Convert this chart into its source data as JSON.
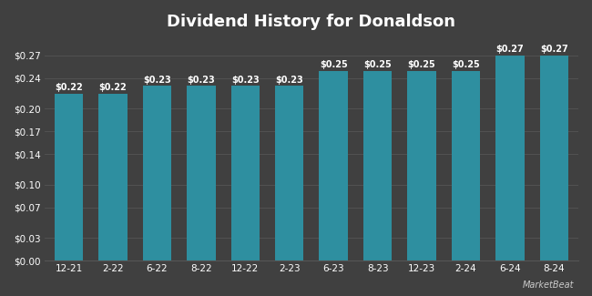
{
  "title": "Dividend History for Donaldson",
  "categories": [
    "12-21",
    "2-22",
    "6-22",
    "8-22",
    "12-22",
    "2-23",
    "6-23",
    "8-23",
    "12-23",
    "2-24",
    "6-24",
    "8-24"
  ],
  "values": [
    0.22,
    0.22,
    0.23,
    0.23,
    0.23,
    0.23,
    0.25,
    0.25,
    0.25,
    0.25,
    0.27,
    0.27
  ],
  "bar_color": "#2e8fa0",
  "background_color": "#404040",
  "plot_bg_color": "#404040",
  "text_color": "#ffffff",
  "grid_color": "#555555",
  "ylim": [
    0,
    0.295
  ],
  "yticks": [
    0.0,
    0.03,
    0.07,
    0.1,
    0.14,
    0.17,
    0.2,
    0.24,
    0.27
  ],
  "title_fontsize": 13,
  "tick_fontsize": 7.5,
  "bar_label_fontsize": 7,
  "bar_width": 0.65
}
